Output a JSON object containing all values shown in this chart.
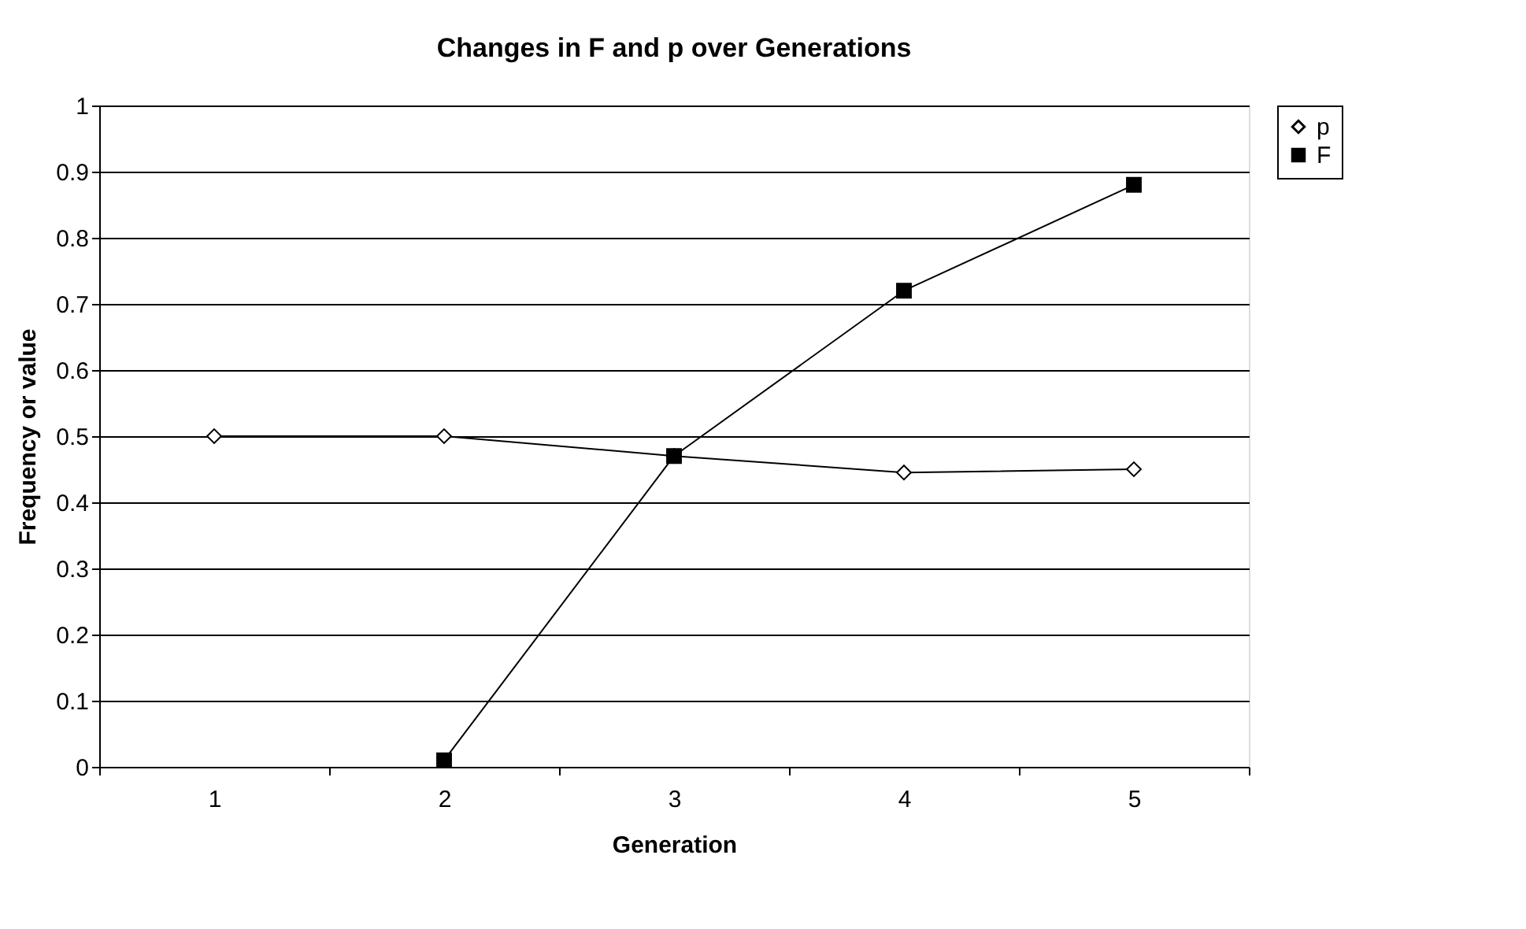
{
  "chart_data": {
    "type": "line",
    "title": "Changes in F and p over Generations",
    "xlabel": "Generation",
    "ylabel": "Frequency or value",
    "categories": [
      "1",
      "2",
      "3",
      "4",
      "5"
    ],
    "series": [
      {
        "name": "p",
        "color": "#000000",
        "marker": "diamond",
        "values": [
          0.5,
          0.5,
          0.47,
          0.445,
          0.45
        ]
      },
      {
        "name": "F",
        "color": "#000000",
        "marker": "square",
        "values": [
          null,
          0.01,
          0.47,
          0.72,
          0.88
        ]
      }
    ],
    "ylim": [
      0,
      1
    ],
    "yticks": [
      0,
      0.1,
      0.2,
      0.3,
      0.4,
      0.5,
      0.6,
      0.7,
      0.8,
      0.9,
      1
    ],
    "grid": "y",
    "legend": "right",
    "line_style": "solid"
  }
}
